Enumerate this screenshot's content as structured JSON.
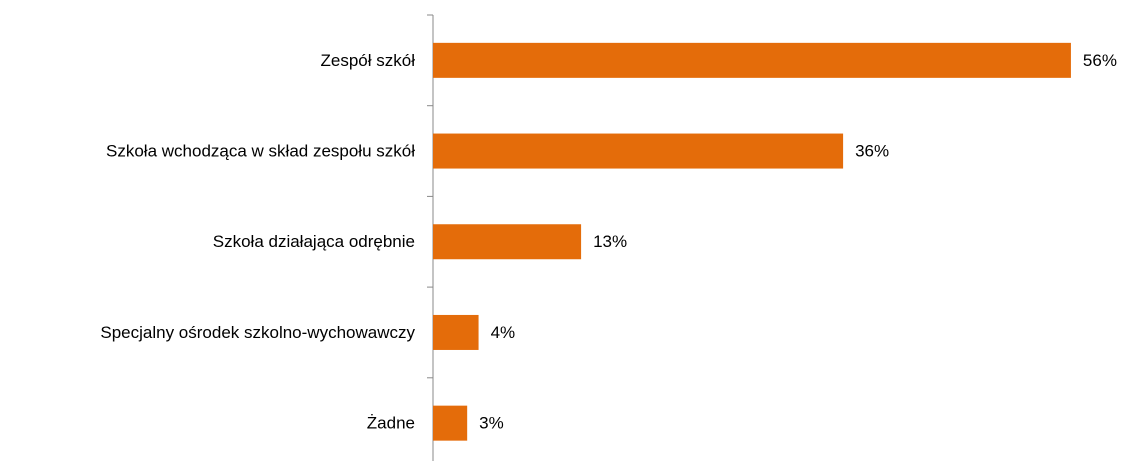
{
  "chart_data": {
    "type": "bar",
    "orientation": "horizontal",
    "categories": [
      "Zespół szkół",
      "Szkoła wchodząca w skład zespołu szkół",
      "Szkoła działająca odrębnie",
      "Specjalny ośrodek szkolno-wychowawczy",
      "Żadne"
    ],
    "values": [
      56,
      36,
      13,
      4,
      3
    ],
    "value_labels": [
      "56%",
      "36%",
      "13%",
      "4%",
      "3%"
    ],
    "color": "#e46c0a",
    "xlim": [
      0,
      60
    ]
  }
}
